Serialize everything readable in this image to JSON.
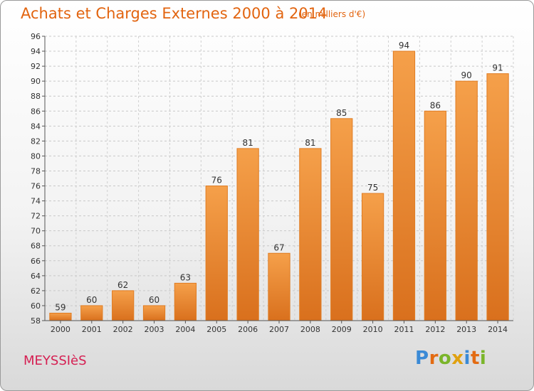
{
  "header": {
    "title": "Achats et Charges Externes 2000 à 2014",
    "unit": "(en milliers d'€)"
  },
  "footer": {
    "place": "MEYSSIèS",
    "logo": [
      "P",
      "r",
      "o",
      "x",
      "i",
      "t",
      "i"
    ],
    "logo_colors": [
      "#3a8ad6",
      "#e36b12",
      "#7ab52a",
      "#e0a10f",
      "#3a8ad6",
      "#e36b12",
      "#7ab52a"
    ]
  },
  "chart_data": {
    "type": "bar",
    "title": "Achats et Charges Externes 2000 à 2014",
    "subtitle": "(en milliers d'€)",
    "categories": [
      "2000",
      "2001",
      "2002",
      "2003",
      "2004",
      "2005",
      "2006",
      "2007",
      "2008",
      "2009",
      "2010",
      "2011",
      "2012",
      "2013",
      "2014"
    ],
    "values": [
      59,
      60,
      62,
      60,
      63,
      76,
      81,
      67,
      81,
      85,
      75,
      94,
      86,
      90,
      91
    ],
    "ylim": [
      58,
      96
    ],
    "yticks": [
      58,
      60,
      62,
      64,
      66,
      68,
      70,
      72,
      74,
      76,
      78,
      80,
      82,
      84,
      86,
      88,
      90,
      92,
      94,
      96
    ],
    "grid": true,
    "bar_color": "#f5a04a",
    "bar_color_dark": "#d9701d"
  }
}
